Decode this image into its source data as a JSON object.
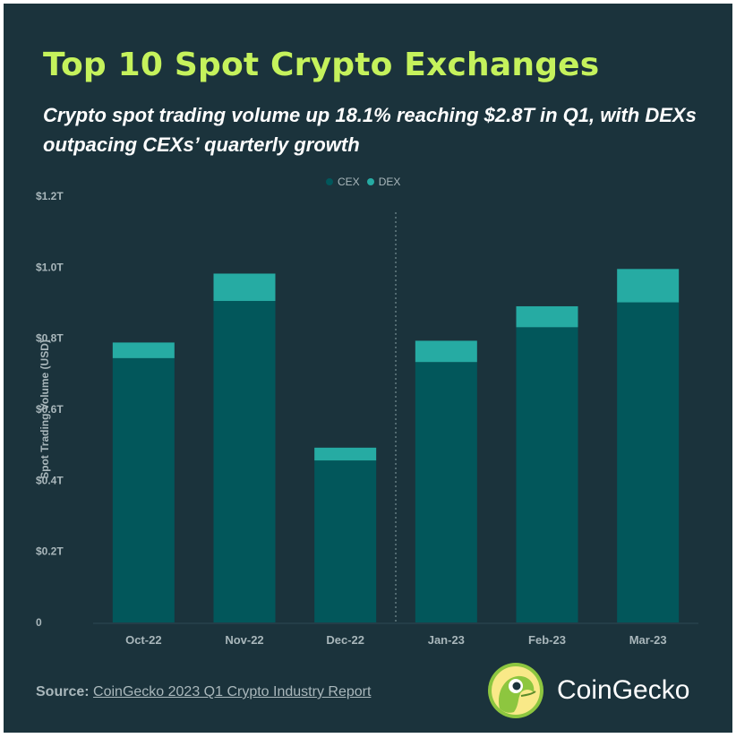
{
  "header": {
    "title": "Top 10 Spot Crypto Exchanges",
    "subtitle": "Crypto spot trading volume up 18.1% reaching $2.8T in Q1, with DEXs outpacing CEXs’ quarterly growth"
  },
  "colors": {
    "background": "#1b333c",
    "title": "#c5f25c",
    "cex": "#02575b",
    "dex": "#26aba3",
    "axis_text": "#a9b7bb"
  },
  "chart_data": {
    "type": "bar",
    "stacked": true,
    "title": "Top 10 Spot Crypto Exchanges",
    "subtitle": "Crypto spot trading volume up 18.1% reaching $2.8T in Q1, with DEXs outpacing CEXs’ quarterly growth",
    "categories": [
      "Oct-22",
      "Nov-22",
      "Dec-22",
      "Jan-23",
      "Feb-23",
      "Mar-23"
    ],
    "series": [
      {
        "name": "CEX",
        "values": [
          0.744,
          0.905,
          0.456,
          0.733,
          0.831,
          0.901
        ]
      },
      {
        "name": "DEX",
        "values": [
          0.044,
          0.077,
          0.036,
          0.06,
          0.059,
          0.094
        ]
      }
    ],
    "ylabel": "Spot Trading Volume (USD)",
    "xlabel": "",
    "ylim": [
      0,
      1.2
    ],
    "y_ticks": [
      0,
      0.2,
      0.4,
      0.6,
      0.8,
      1.0,
      1.2
    ],
    "y_tick_labels": [
      "0",
      "$0.2T",
      "$0.4T",
      "$0.6T",
      "$0.8T",
      "$1.0T",
      "$1.2T"
    ],
    "divider_after": "Dec-22",
    "legend": {
      "position": "top-center",
      "entries": [
        "CEX",
        "DEX"
      ]
    },
    "grid": false
  },
  "footer": {
    "source_label": "Source:",
    "source_text": "CoinGecko 2023 Q1 Crypto Industry Report",
    "brand": "CoinGecko",
    "logo_icon": "gecko-logo-icon"
  }
}
